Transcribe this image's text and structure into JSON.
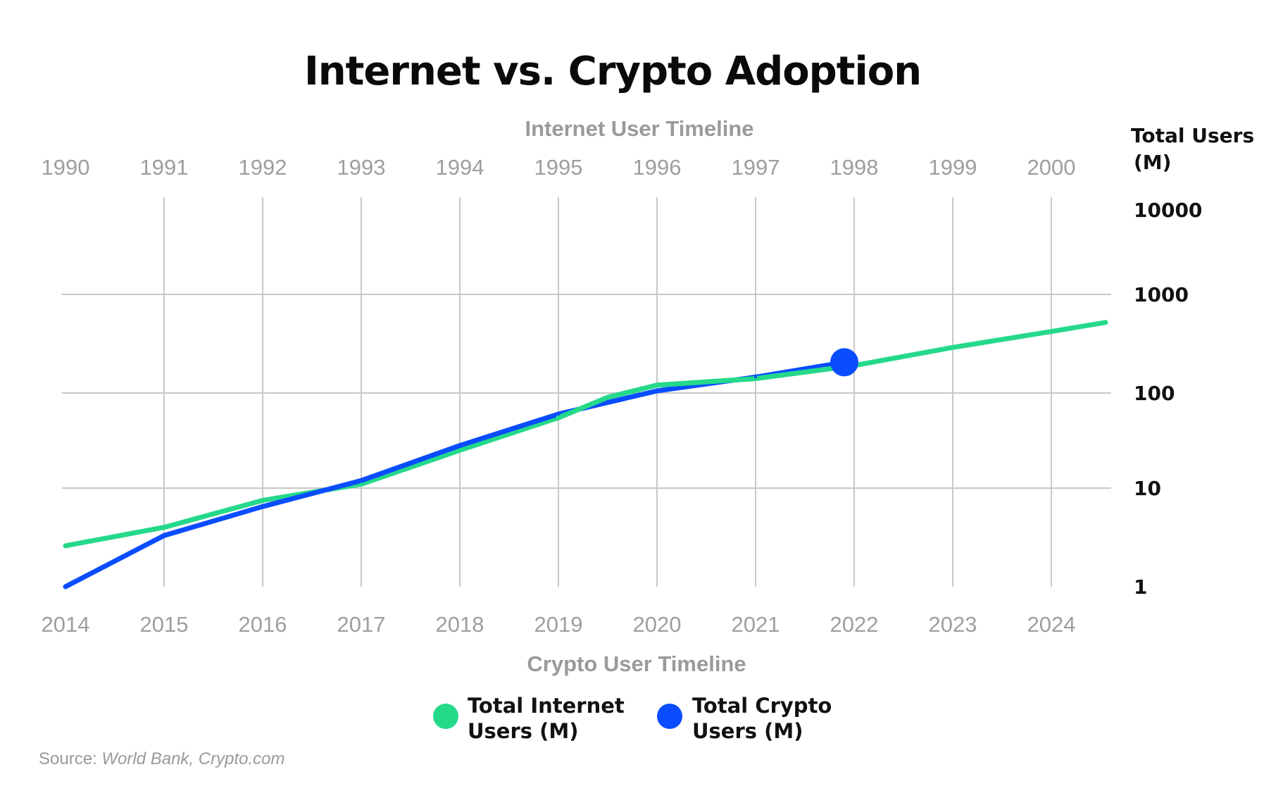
{
  "chart_data": {
    "type": "line",
    "title": "Internet vs. Crypto Adoption",
    "top_axis": {
      "title": "Internet User Timeline",
      "ticks": [
        "1990",
        "1991",
        "1992",
        "1993",
        "1994",
        "1995",
        "1996",
        "1997",
        "1998",
        "1999",
        "2000"
      ]
    },
    "bottom_axis": {
      "title": "Crypto User Timeline",
      "ticks": [
        "2014",
        "2015",
        "2016",
        "2017",
        "2018",
        "2019",
        "2020",
        "2021",
        "2022",
        "2023",
        "2024"
      ]
    },
    "y_axis": {
      "label_line1": "Total Users",
      "label_line2": "(M)",
      "scale": "log",
      "ticks": [
        "10000",
        "1000",
        "100",
        "10",
        "1"
      ],
      "tick_values": [
        10000,
        1000,
        100,
        10,
        1
      ],
      "range": [
        1,
        10000
      ]
    },
    "grid": true,
    "legend_placement": "bottom-center",
    "series": [
      {
        "name": "Total Internet Users (M)",
        "color": "#25d98a",
        "x": [
          0,
          1,
          2,
          3,
          4,
          5,
          5.5,
          6,
          7,
          8,
          9,
          10,
          10.55
        ],
        "values": [
          2.6,
          4,
          7.5,
          11,
          25,
          55,
          90,
          120,
          140,
          190,
          290,
          420,
          520
        ]
      },
      {
        "name": "Total Crypto Users (M)",
        "color": "#0a4dff",
        "x": [
          0,
          1,
          2,
          3,
          4,
          5,
          6,
          7,
          7.9
        ],
        "values": [
          1,
          3.3,
          6.5,
          12,
          28,
          60,
          105,
          145,
          205
        ],
        "end_marker": true
      }
    ]
  },
  "legend": {
    "internet_line1": "Total Internet",
    "internet_line2": "Users (M)",
    "crypto_line1": "Total Crypto",
    "crypto_line2": "Users (M)"
  },
  "source": {
    "prefix": "Source: ",
    "text": "World Bank, Crypto.com"
  }
}
